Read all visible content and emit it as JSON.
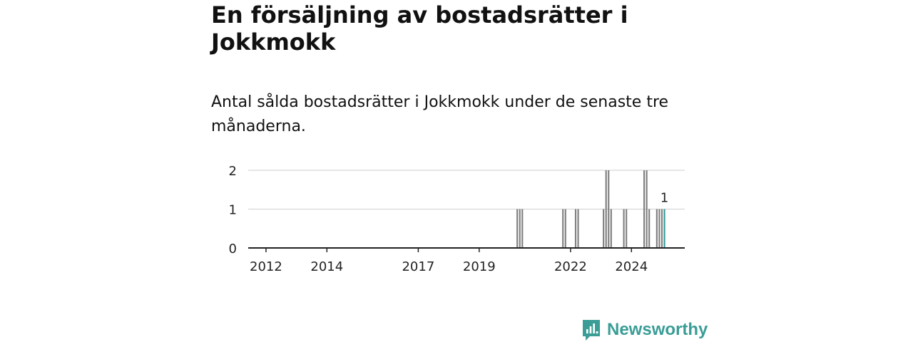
{
  "title": "En försäljning av bostadsrätter i Jokkmokk",
  "subtitle": "Antal sålda bostadsrätter i Jokkmokk under de senaste tre månaderna.",
  "brand": {
    "name": "Newsworthy",
    "color": "#3a9d96",
    "icon": "newsworthy-logo-icon"
  },
  "colors": {
    "bar": "#808080",
    "highlight": "#2f9c96",
    "axis": "#222222",
    "grid": "#d7d7d7",
    "text": "#222222"
  },
  "chart_data": {
    "type": "bar",
    "ylim": [
      0,
      2
    ],
    "yticks": [
      0,
      1,
      2
    ],
    "xticks": [
      {
        "label": "2012",
        "date": "2012-01"
      },
      {
        "label": "2014",
        "date": "2014-01"
      },
      {
        "label": "2017",
        "date": "2017-01"
      },
      {
        "label": "2019",
        "date": "2019-01"
      },
      {
        "label": "2022",
        "date": "2022-01"
      },
      {
        "label": "2024",
        "date": "2024-01"
      }
    ],
    "x_range": [
      "2011-06",
      "2025-10"
    ],
    "series": [
      {
        "values": [
          {
            "date": "2020-04",
            "value": 1
          },
          {
            "date": "2020-05",
            "value": 1
          },
          {
            "date": "2020-06",
            "value": 1
          },
          {
            "date": "2021-10",
            "value": 1
          },
          {
            "date": "2021-11",
            "value": 1
          },
          {
            "date": "2022-03",
            "value": 1
          },
          {
            "date": "2022-04",
            "value": 1
          },
          {
            "date": "2023-02",
            "value": 1
          },
          {
            "date": "2023-03",
            "value": 2
          },
          {
            "date": "2023-04",
            "value": 2
          },
          {
            "date": "2023-05",
            "value": 1
          },
          {
            "date": "2023-10",
            "value": 1
          },
          {
            "date": "2023-11",
            "value": 1
          },
          {
            "date": "2024-06",
            "value": 2
          },
          {
            "date": "2024-07",
            "value": 2
          },
          {
            "date": "2024-08",
            "value": 1
          },
          {
            "date": "2024-11",
            "value": 1
          },
          {
            "date": "2024-12",
            "value": 1
          },
          {
            "date": "2025-01",
            "value": 1
          }
        ]
      }
    ],
    "highlight": {
      "date": "2025-02",
      "value": 1,
      "label": "1"
    }
  }
}
